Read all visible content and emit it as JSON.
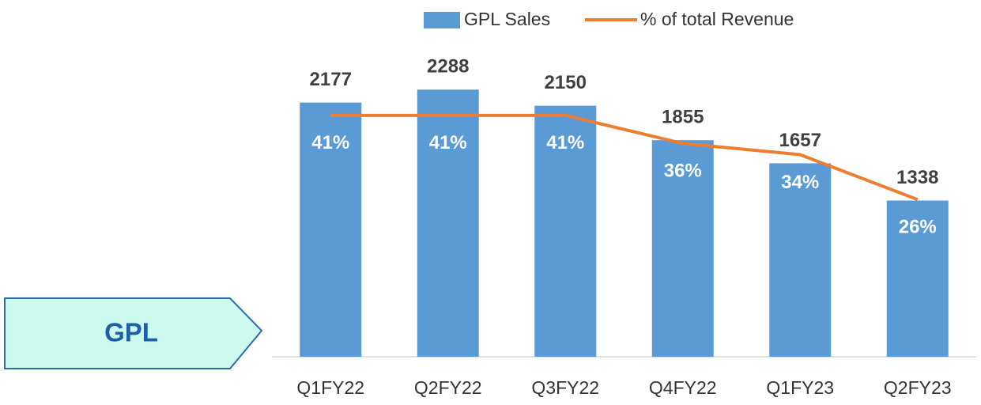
{
  "tag": "GPL",
  "chart_data": {
    "type": "bar",
    "categories": [
      "Q1FY22",
      "Q2FY22",
      "Q3FY22",
      "Q4FY22",
      "Q1FY23",
      "Q2FY23"
    ],
    "series": [
      {
        "name": "GPL Sales",
        "type": "bar",
        "color": "#5b9bd5",
        "values": [
          2177,
          2288,
          2150,
          1855,
          1657,
          1338
        ]
      },
      {
        "name": "% of total Revenue",
        "type": "line",
        "axis": "y2",
        "color": "#ed7d31",
        "values": [
          41,
          41,
          41,
          36,
          34,
          26
        ],
        "value_labels": [
          "41%",
          "41%",
          "41%",
          "36%",
          "34%",
          "26%"
        ]
      }
    ],
    "ylim": [
      0,
      2500
    ],
    "y2lim": [
      -2,
      50
    ],
    "legend": "top"
  }
}
